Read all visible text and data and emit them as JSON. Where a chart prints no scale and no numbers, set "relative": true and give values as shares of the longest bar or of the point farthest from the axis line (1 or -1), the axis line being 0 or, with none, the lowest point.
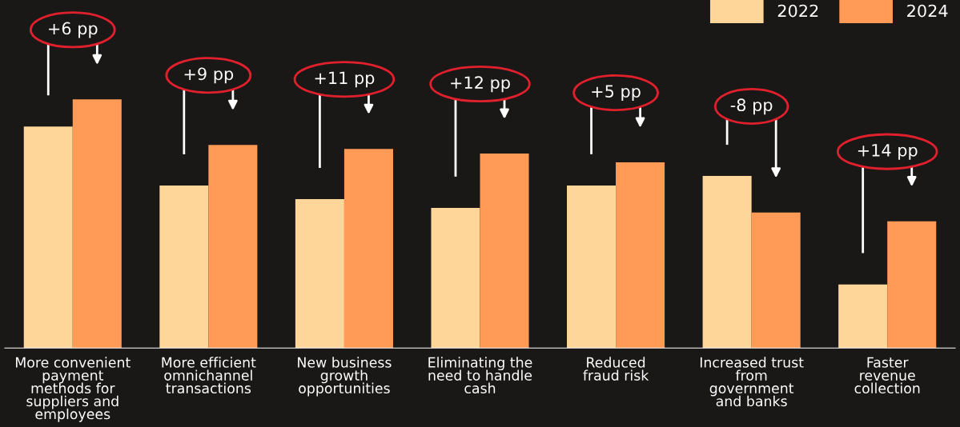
{
  "chart_data": {
    "type": "bar",
    "relative": true,
    "categories": [
      "More convenient\npayment\nmethods for\nsuppliers and\nemployees",
      "More efficient\nomnichannel\ntransactions",
      "New business\ngrowth\nopportunities",
      "Eliminating the\nneed to handle\ncash",
      "Reduced\nfraud risk",
      "Increased trust\nfrom\ngovernment\nand banks",
      "Faster\nrevenue\ncollection"
    ],
    "series": [
      {
        "name": "2022",
        "color": "#ffd699",
        "values": [
          0.891,
          0.654,
          0.599,
          0.564,
          0.654,
          0.692,
          0.256
        ]
      },
      {
        "name": "2024",
        "color": "#ff9b57",
        "values": [
          1,
          0.817,
          0.801,
          0.782,
          0.747,
          0.545,
          0.51
        ]
      }
    ],
    "annotations": [
      "+6 pp",
      "+9 pp",
      "+11 pp",
      "+12 pp",
      "+5 pp",
      "-8 pp",
      "+14 pp"
    ],
    "legend": "top right",
    "grid": false
  }
}
